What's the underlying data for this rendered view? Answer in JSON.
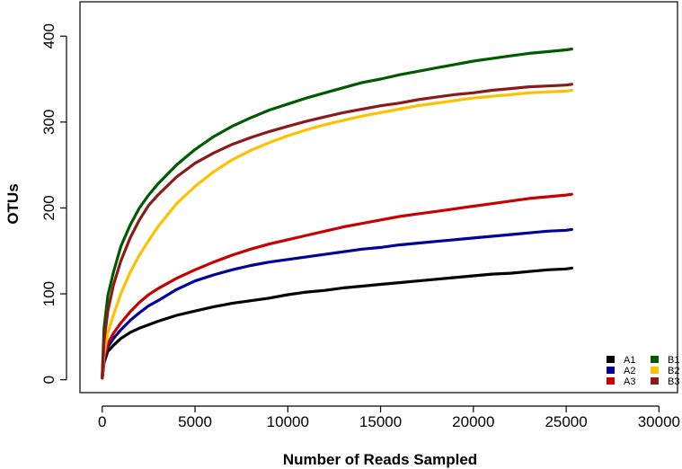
{
  "chart_data": {
    "type": "line",
    "title": "",
    "xlabel": "Number of Reads Sampled",
    "ylabel": "OTUs",
    "xlim": [
      -1200,
      31000
    ],
    "ylim": [
      -15,
      440
    ],
    "x_ticks": [
      0,
      5000,
      10000,
      15000,
      20000,
      25000,
      30000
    ],
    "y_ticks": [
      0,
      100,
      200,
      300,
      400
    ],
    "grid": false,
    "legend_placement": "bottom-right",
    "x": [
      0,
      100,
      300,
      600,
      1000,
      1500,
      2000,
      2500,
      3000,
      4000,
      5000,
      6000,
      7000,
      8000,
      9000,
      10000,
      11000,
      12000,
      13000,
      14000,
      15000,
      16000,
      17000,
      18000,
      19000,
      20000,
      21000,
      22000,
      23000,
      24000,
      25000,
      25300
    ],
    "series": [
      {
        "name": "A1",
        "color": "#000000",
        "values": [
          2,
          20,
          33,
          40,
          48,
          55,
          60,
          64,
          68,
          75,
          80,
          85,
          89,
          92,
          95,
          99,
          102,
          104,
          107,
          109,
          111,
          113,
          115,
          117,
          119,
          121,
          123,
          124,
          126,
          128,
          129,
          130
        ]
      },
      {
        "name": "A2",
        "color": "#00009a",
        "values": [
          2,
          22,
          38,
          48,
          58,
          69,
          78,
          86,
          92,
          105,
          115,
          122,
          128,
          133,
          137,
          140,
          143,
          146,
          149,
          152,
          154,
          157,
          159,
          161,
          163,
          165,
          167,
          169,
          171,
          173,
          174,
          175
        ]
      },
      {
        "name": "A3",
        "color": "#c80000",
        "values": [
          2,
          25,
          42,
          54,
          66,
          79,
          90,
          99,
          106,
          118,
          128,
          137,
          145,
          152,
          158,
          163,
          168,
          173,
          178,
          182,
          186,
          190,
          193,
          196,
          199,
          202,
          205,
          208,
          211,
          213,
          215,
          216
        ]
      },
      {
        "name": "B1",
        "color": "#005a00",
        "values": [
          5,
          60,
          98,
          125,
          155,
          180,
          200,
          215,
          228,
          250,
          268,
          283,
          295,
          305,
          314,
          321,
          328,
          334,
          340,
          346,
          350,
          355,
          359,
          363,
          367,
          371,
          374,
          377,
          380,
          382,
          384,
          385
        ]
      },
      {
        "name": "B2",
        "color": "#ffc000",
        "values": [
          3,
          30,
          55,
          75,
          100,
          125,
          145,
          162,
          178,
          205,
          225,
          242,
          256,
          267,
          276,
          284,
          291,
          297,
          302,
          307,
          311,
          315,
          319,
          322,
          325,
          328,
          330,
          332,
          334,
          335,
          336,
          337
        ]
      },
      {
        "name": "B3",
        "color": "#8b1a1a",
        "values": [
          3,
          45,
          80,
          110,
          138,
          165,
          186,
          203,
          215,
          236,
          252,
          264,
          274,
          282,
          289,
          295,
          301,
          306,
          311,
          315,
          319,
          322,
          326,
          329,
          332,
          334,
          337,
          339,
          341,
          342,
          343,
          344
        ]
      }
    ]
  }
}
